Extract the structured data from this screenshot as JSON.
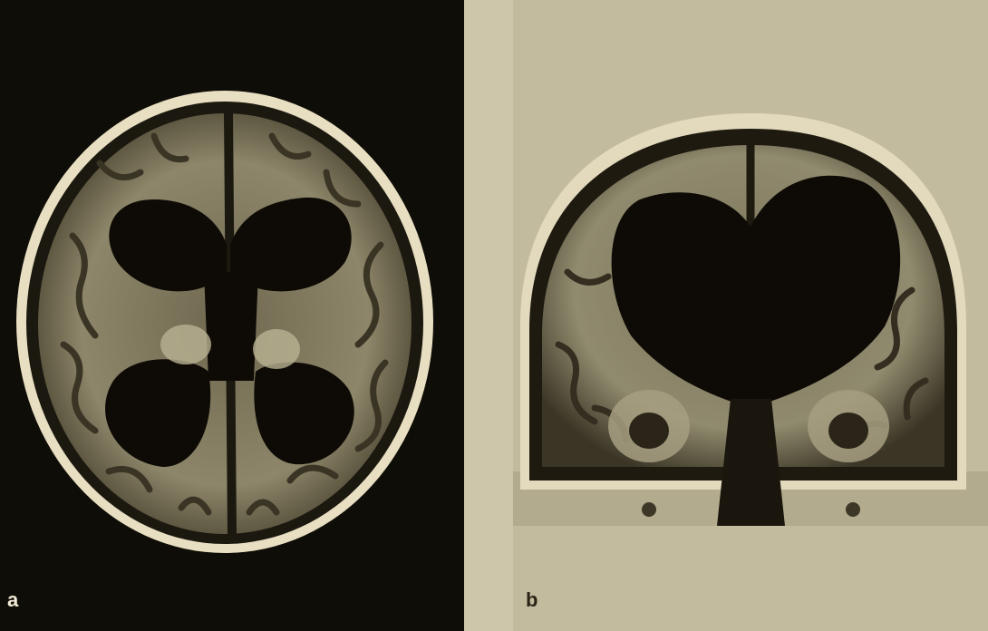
{
  "figure": {
    "panels": [
      {
        "label": "a",
        "view": "axial-mri-scan-image"
      },
      {
        "label": "b",
        "view": "coronal-mri-scan-image"
      }
    ],
    "colors": {
      "panel_a_background": "#0f0d07",
      "panel_b_background": "#c3bb9d",
      "scalp": "#e6ddc0",
      "brain_tissue": "#8c8466",
      "ventricles": "#0e0b06"
    }
  }
}
